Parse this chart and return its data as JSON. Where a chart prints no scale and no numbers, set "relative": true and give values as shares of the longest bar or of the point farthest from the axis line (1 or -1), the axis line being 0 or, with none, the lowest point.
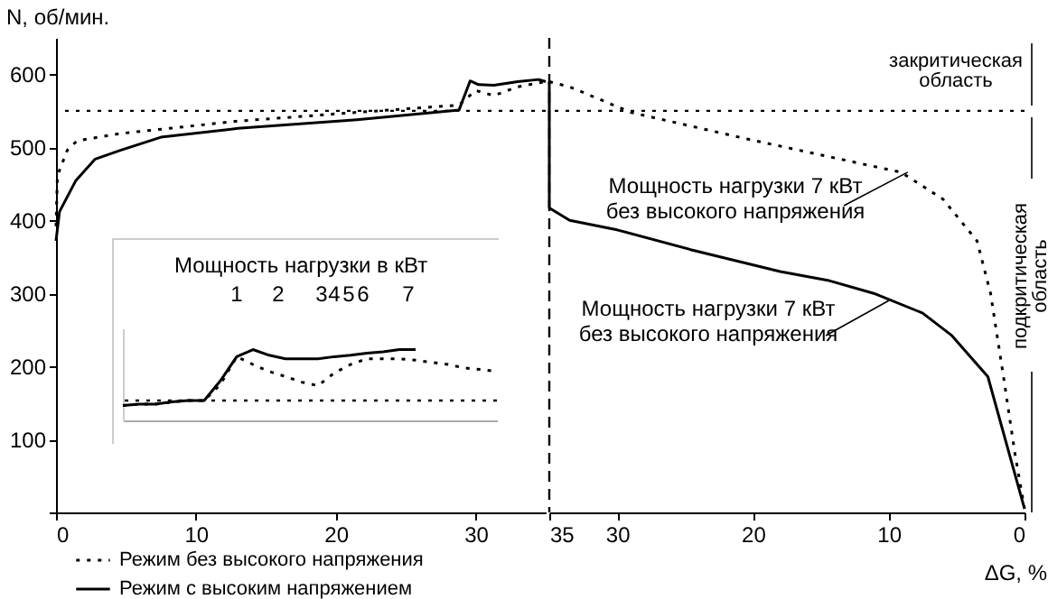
{
  "chart_data": [
    {
      "type": "line",
      "ylabel": "N, об/мин.",
      "xlim": [
        0,
        35
      ],
      "ylim": [
        0,
        650
      ],
      "xticks": [
        0,
        10,
        20,
        30
      ],
      "yticks": [
        {
          "value": 0,
          "label": null
        },
        100,
        200,
        300,
        400,
        500,
        600
      ],
      "grid": false,
      "legend": "bottom",
      "marker": "none",
      "series": [
        {
          "name": "Режим без высокого напряжения",
          "color": "#000000",
          "line_style": "dotted",
          "x": [
            0,
            0.1,
            0.8,
            1.5,
            4.6,
            13,
            21.5,
            28.8,
            30,
            31.3,
            33,
            35
          ],
          "values": [
            392,
            461,
            496,
            509,
            519,
            536,
            548,
            558,
            578,
            571,
            583,
            590
          ]
        },
        {
          "name": "Режим с высоким напряжением",
          "color": "#000000",
          "line_style": "solid",
          "x": [
            0,
            0.25,
            1.4,
            2.8,
            4.6,
            7.5,
            13,
            21.5,
            28.8,
            29.6,
            30.2,
            31.3,
            33,
            34.5,
            35
          ],
          "values": [
            372,
            412,
            454,
            484,
            496,
            514,
            526,
            538,
            551,
            591,
            586,
            585,
            590,
            593,
            590
          ]
        }
      ],
      "ref_lines": [
        {
          "axis": "y",
          "value": 550,
          "line_style": "dotted",
          "color": "#000000"
        }
      ]
    },
    {
      "type": "line",
      "xlabel": "ΔG, %",
      "xlim": [
        35,
        0
      ],
      "ylim": [
        0,
        650
      ],
      "xticks": [
        35,
        30,
        20,
        10,
        0
      ],
      "tick_labels": "x",
      "grid": false,
      "marker": "none",
      "series": [
        {
          "name": "Режим без высокого напряжения",
          "color": "#000000",
          "line_style": "dotted",
          "x": [
            35,
            33.5,
            29,
            20.3,
            13.6,
            9.1,
            6,
            3.5,
            2.5,
            1.5,
            0.7,
            0
          ],
          "values": [
            590,
            583,
            548,
            511,
            484,
            466,
            429,
            372,
            300,
            180,
            80,
            5
          ]
        },
        {
          "name": "Режим с высоким напряжением",
          "color": "#000000",
          "line_style": "solid",
          "x": [
            35,
            35,
            33.5,
            30,
            24.6,
            18,
            14.5,
            11.1,
            7.5,
            5.4,
            2.7,
            0
          ],
          "values": [
            590,
            417,
            400,
            387,
            360,
            330,
            318,
            300,
            273,
            243,
            186,
            5
          ]
        }
      ],
      "ref_lines": [
        {
          "axis": "y",
          "value": 550,
          "line_style": "dotted",
          "color": "#000000"
        },
        {
          "axis": "x",
          "value": 35,
          "line_style": "dashed",
          "color": "#000000"
        }
      ],
      "annotations": [
        {
          "text": "Мощность нагрузки 7 кВт\nбез высокого напряжения",
          "x": 8.6,
          "y": 466
        },
        {
          "text": "Мощность нагрузки 7 кВт\nбез высокого напряжения",
          "x": 10,
          "y": 290
        },
        {
          "text": "закритическая\nобласть",
          "x": 0,
          "y": 550
        },
        {
          "text": "подкритическая\nобласть",
          "x": 0,
          "y": 0
        }
      ]
    },
    {
      "type": "line",
      "title": "Мощность нагрузки в кВт",
      "relative": true,
      "marker": "none",
      "categories": [
        null,
        null,
        null,
        null,
        null,
        null,
        null,
        null,
        null,
        null,
        null,
        null,
        null,
        null,
        null,
        null,
        null,
        null,
        null,
        null,
        null,
        null,
        null,
        null
      ],
      "series": [
        {
          "color": "#000000",
          "line_style": "dotted",
          "values": [
            0.21,
            0.23,
            0.23,
            0.26,
            0.28,
            0.28,
            0.51,
            0.9,
            0.79,
            0.69,
            0.62,
            0.54,
            0.49,
            0.67,
            0.79,
            0.87,
            0.87,
            0.87,
            0.85,
            0.82,
            0.79,
            0.74,
            0.72,
            0.69
          ]
        },
        {
          "color": "#000000",
          "line_style": "solid",
          "values": [
            0.21,
            0.23,
            0.23,
            0.26,
            0.28,
            0.28,
            0.56,
            0.9,
            1.0,
            0.92,
            0.87,
            0.87,
            0.87,
            0.9,
            0.92,
            0.95,
            0.97,
            1.0,
            1.0,
            null,
            null,
            null,
            null,
            null
          ]
        }
      ],
      "ref_lines": [
        {
          "axis": "y",
          "value": 0.28,
          "line_style": "dotted",
          "color": "#000000"
        }
      ],
      "annotations": [
        "1",
        "2",
        "3",
        "4",
        "5",
        "6",
        "7"
      ]
    }
  ]
}
